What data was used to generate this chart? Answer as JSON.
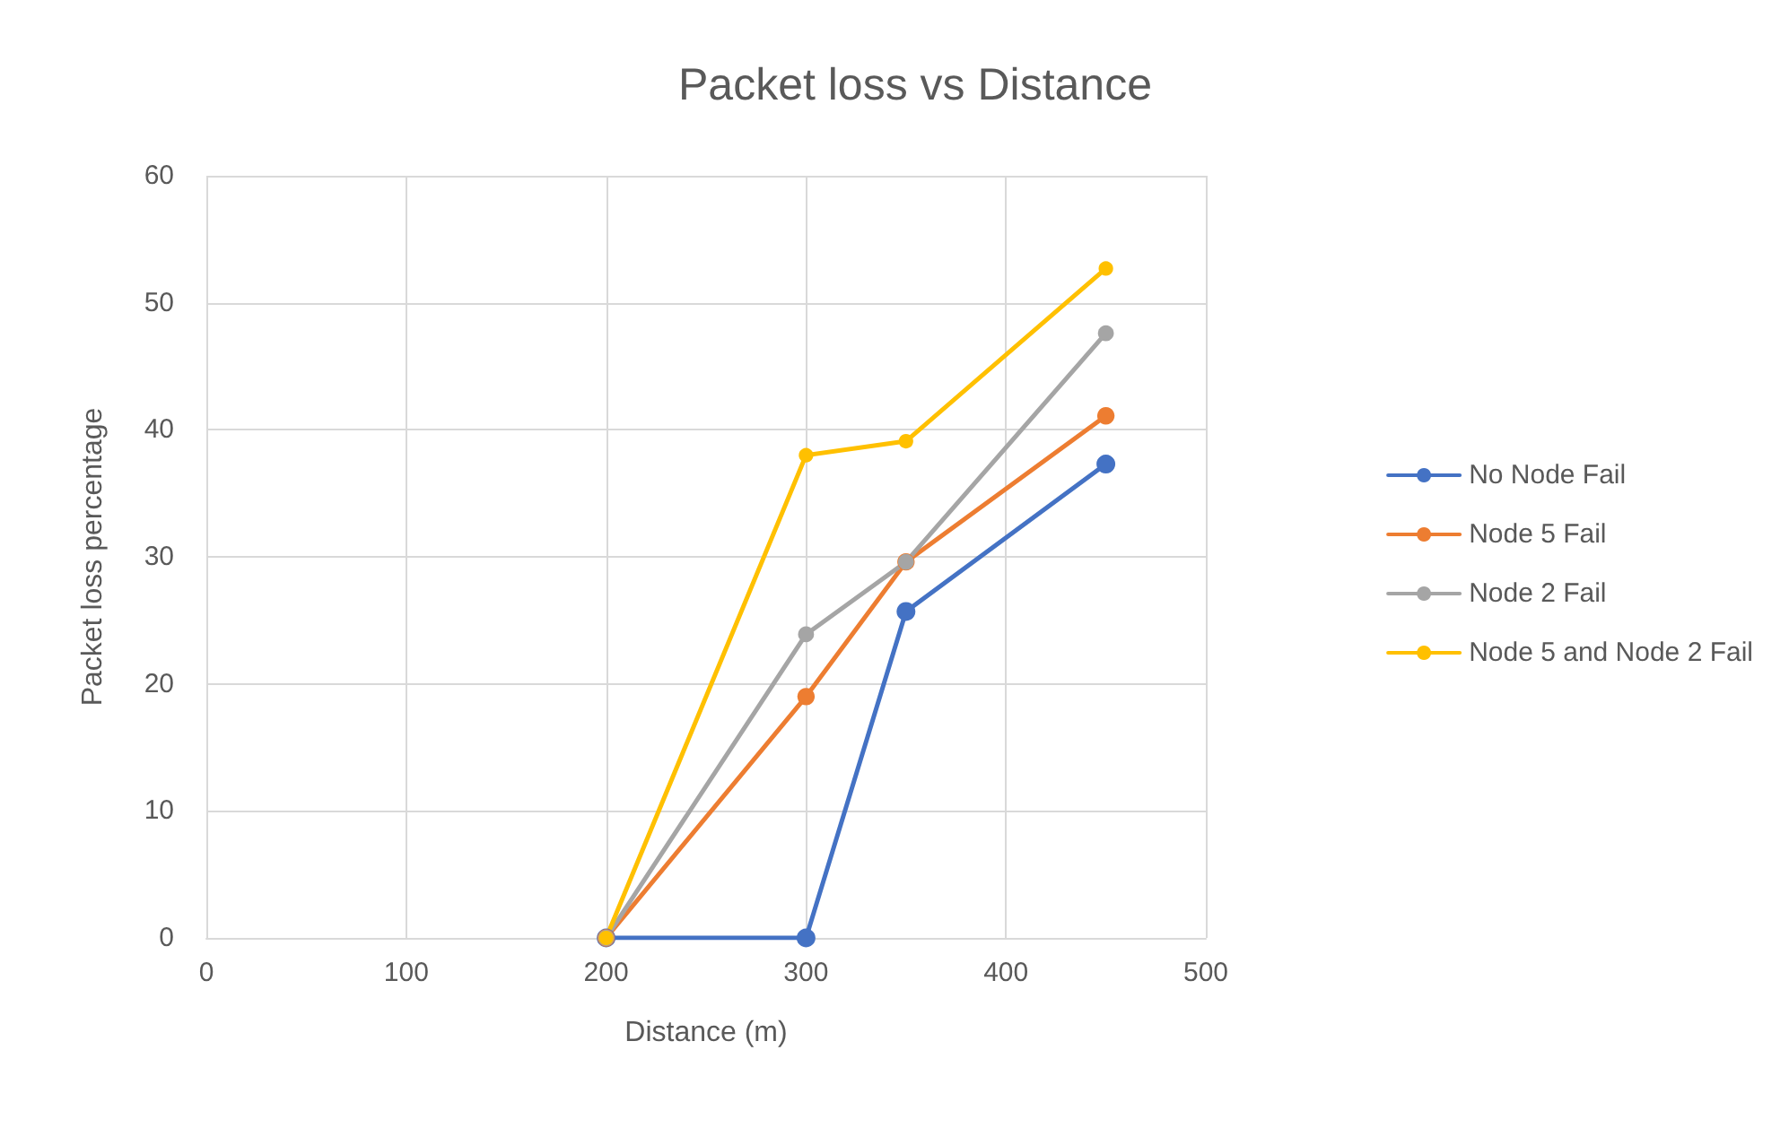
{
  "chart_data": {
    "type": "line",
    "title": "Packet loss vs Distance",
    "xlabel": "Distance (m)",
    "ylabel": "Packet loss percentage",
    "x": [
      200,
      300,
      350,
      450
    ],
    "series": [
      {
        "name": "No Node Fail",
        "color": "#4472c4",
        "values": [
          0,
          0,
          25.7,
          37.3
        ]
      },
      {
        "name": "Node 5 Fail",
        "color": "#ed7d31",
        "values": [
          0,
          19,
          29.6,
          41.1
        ]
      },
      {
        "name": "Node 2 Fail",
        "color": "#a5a5a5",
        "values": [
          0,
          23.9,
          29.6,
          47.6
        ]
      },
      {
        "name": "Node 5 and Node 2 Fail",
        "color": "#ffc000",
        "values": [
          0,
          38,
          39.1,
          52.7
        ]
      }
    ],
    "xlim": [
      0,
      500
    ],
    "xticks": [
      0,
      100,
      200,
      300,
      400,
      500
    ],
    "ylim": [
      0,
      60
    ],
    "yticks": [
      0,
      10,
      20,
      30,
      40,
      50,
      60
    ],
    "grid": true,
    "legend": "right",
    "marker": "circle",
    "line_style": "solid"
  }
}
